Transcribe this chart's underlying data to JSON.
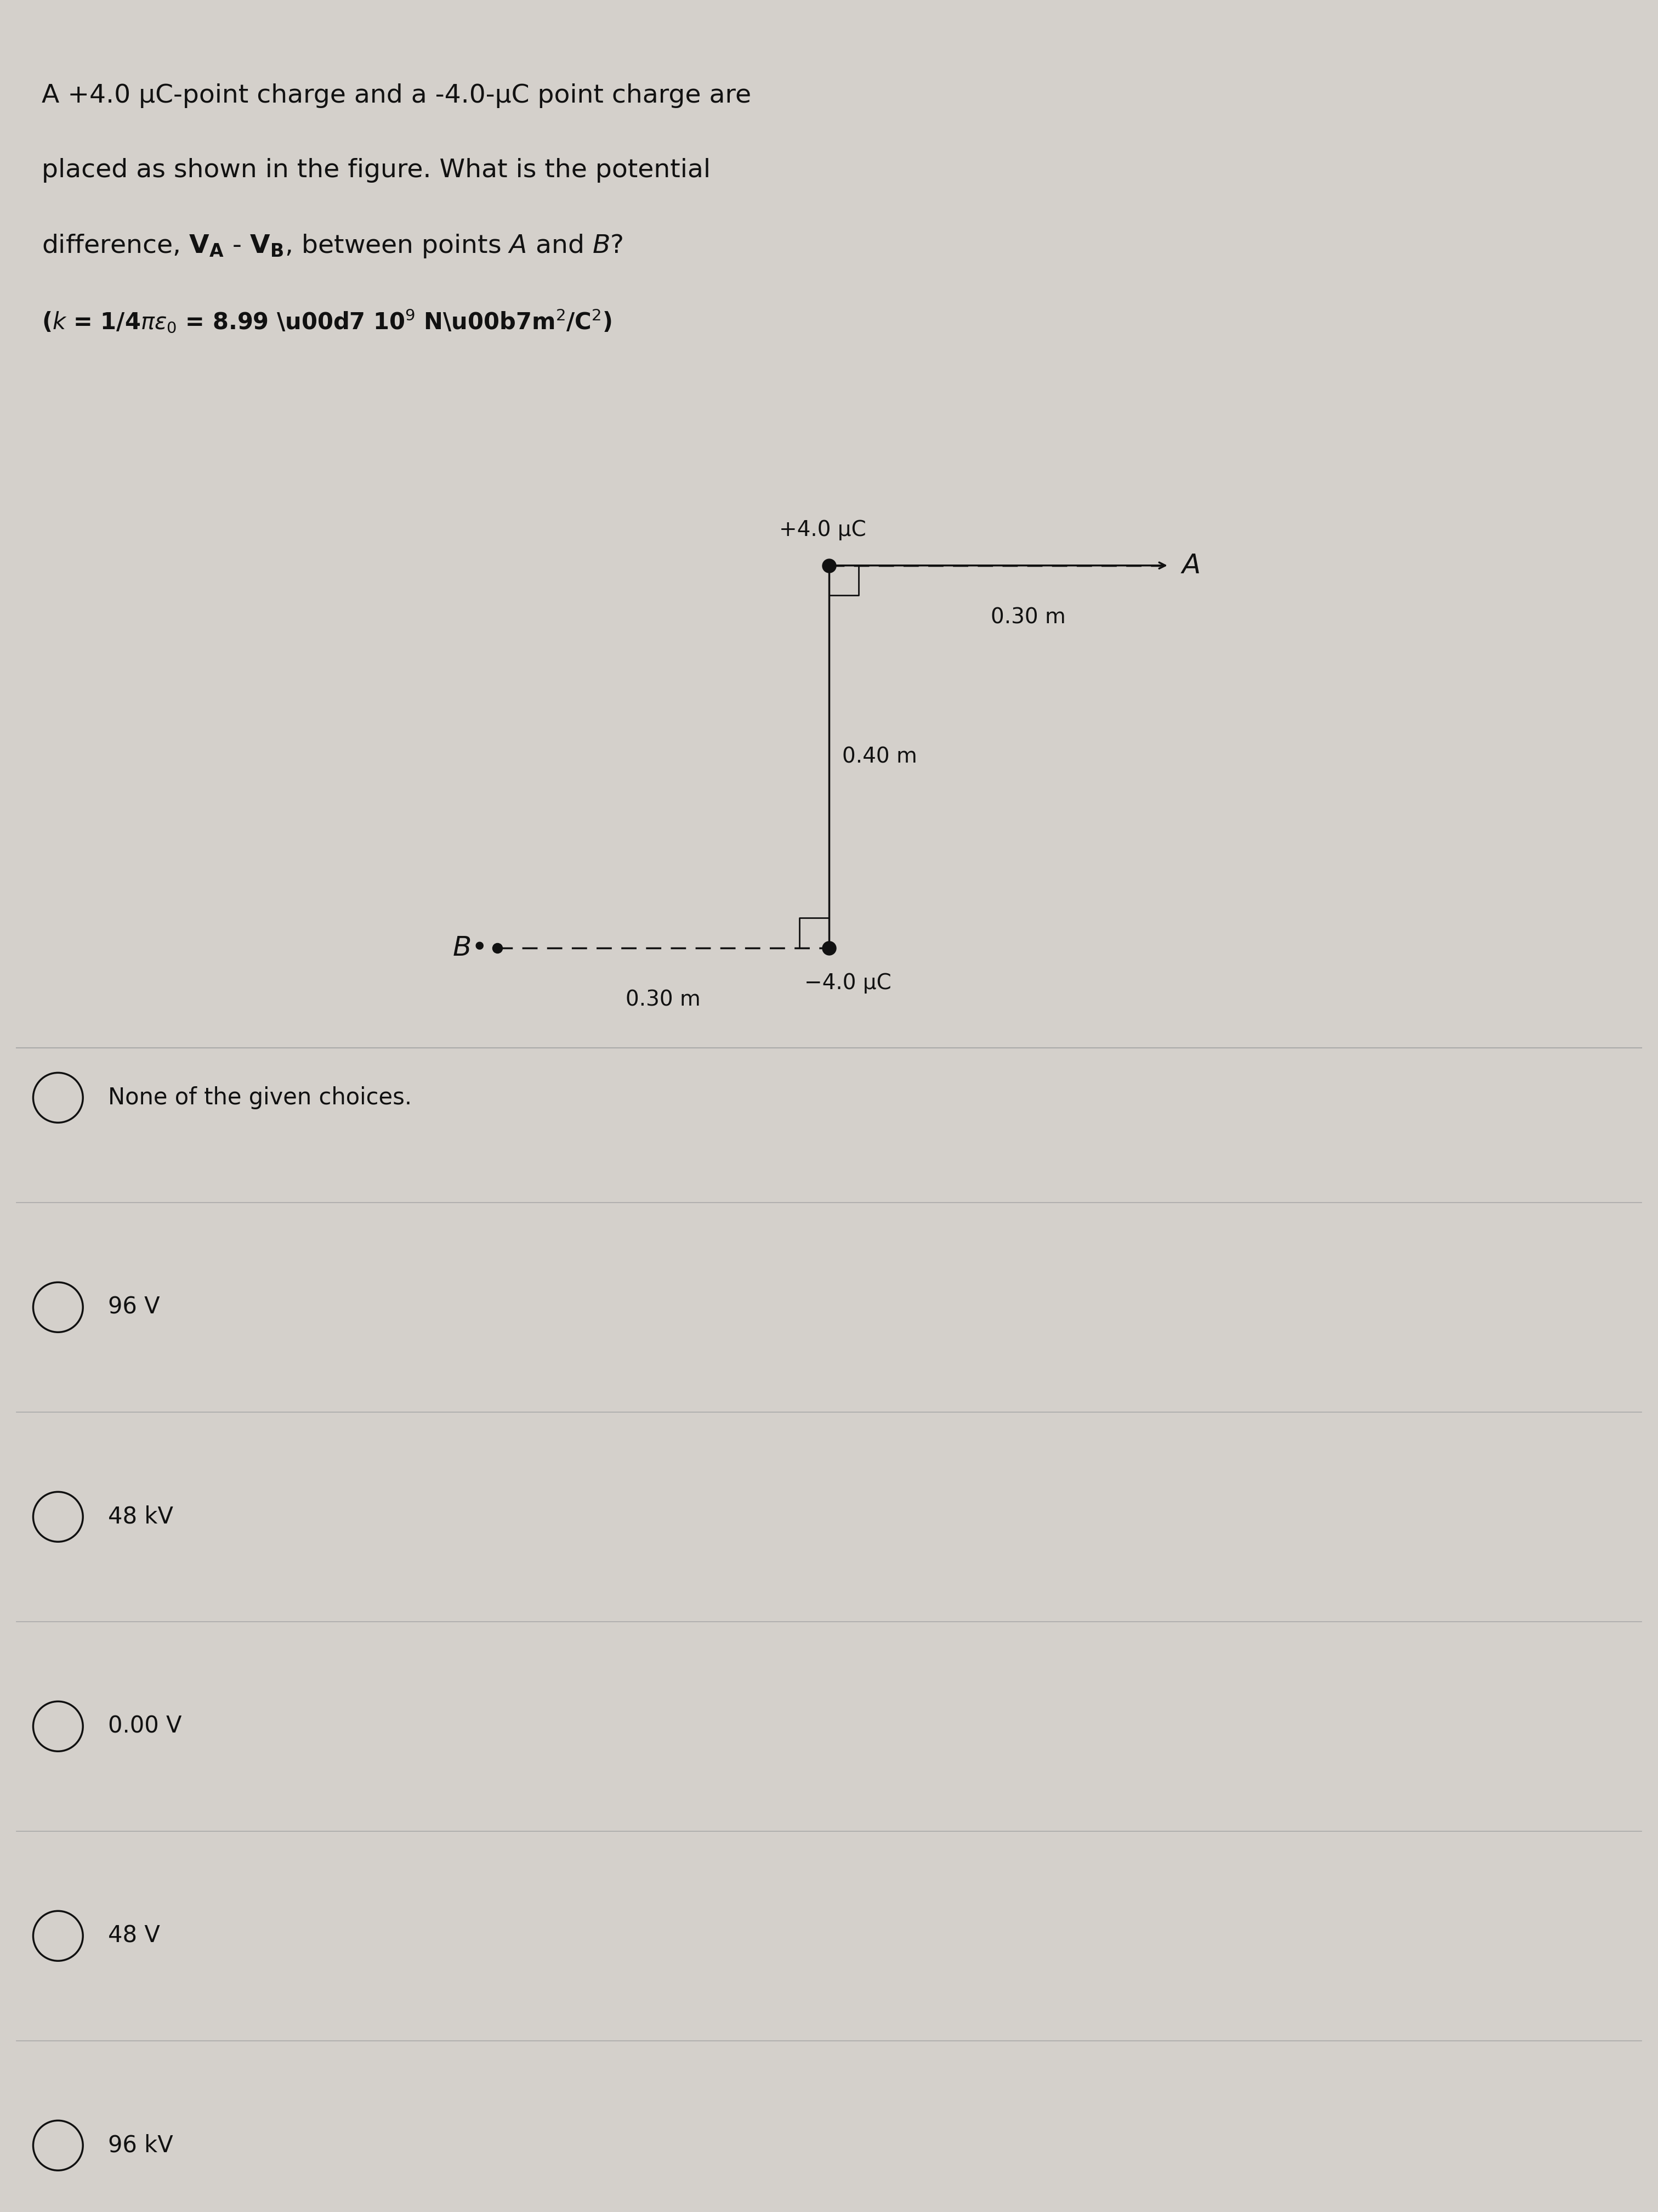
{
  "bg_color": "#d4d0cb",
  "fg_color": "#111111",
  "divider_color": "#aaaaaa",
  "line_color": "#111111",
  "dot_color": "#111111",
  "font_size_title": 34,
  "font_size_formula": 30,
  "font_size_diagram": 28,
  "font_size_choices": 30,
  "choices": [
    "None of the given choices.",
    "96 V",
    "48 kV",
    "0.00 V",
    "48 V",
    "96 kV"
  ]
}
